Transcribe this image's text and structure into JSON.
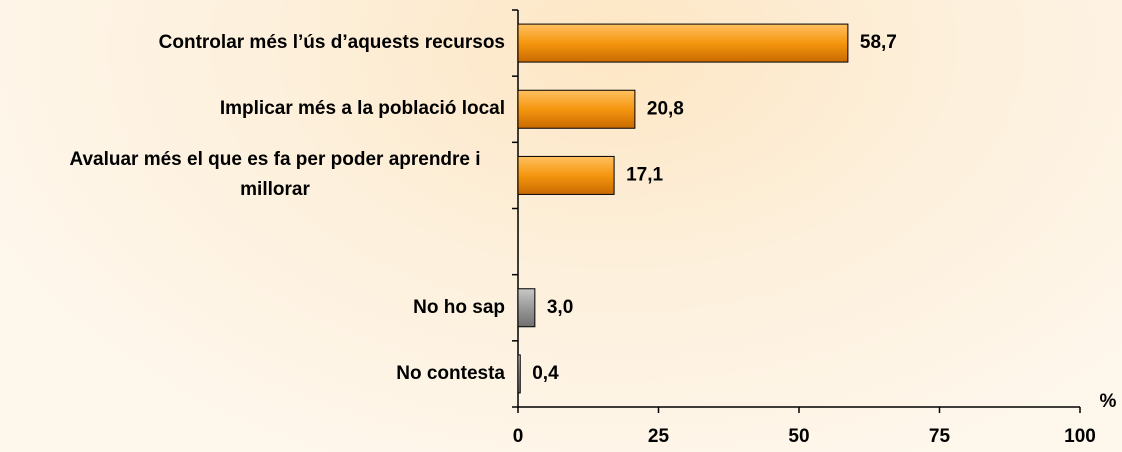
{
  "chart_data": {
    "type": "hbar",
    "categories": [
      "Controlar més l’ús d’aquests recursos",
      "Implicar més a la població local",
      "Avaluar més el que es fa per poder aprendre i millorar",
      null,
      "No ho sap",
      "No contesta"
    ],
    "values": [
      58.7,
      20.8,
      17.1,
      null,
      3.0,
      0.4
    ],
    "value_labels": [
      "58,7",
      "20,8",
      "17,1",
      null,
      "3,0",
      "0,4"
    ],
    "colors": [
      "#f5960f",
      "#f5960f",
      "#f5960f",
      null,
      "#999999",
      "#999999"
    ],
    "xlim": [
      0,
      100
    ],
    "xticks": [
      0,
      25,
      50,
      75,
      100
    ],
    "xlabel": "%"
  }
}
